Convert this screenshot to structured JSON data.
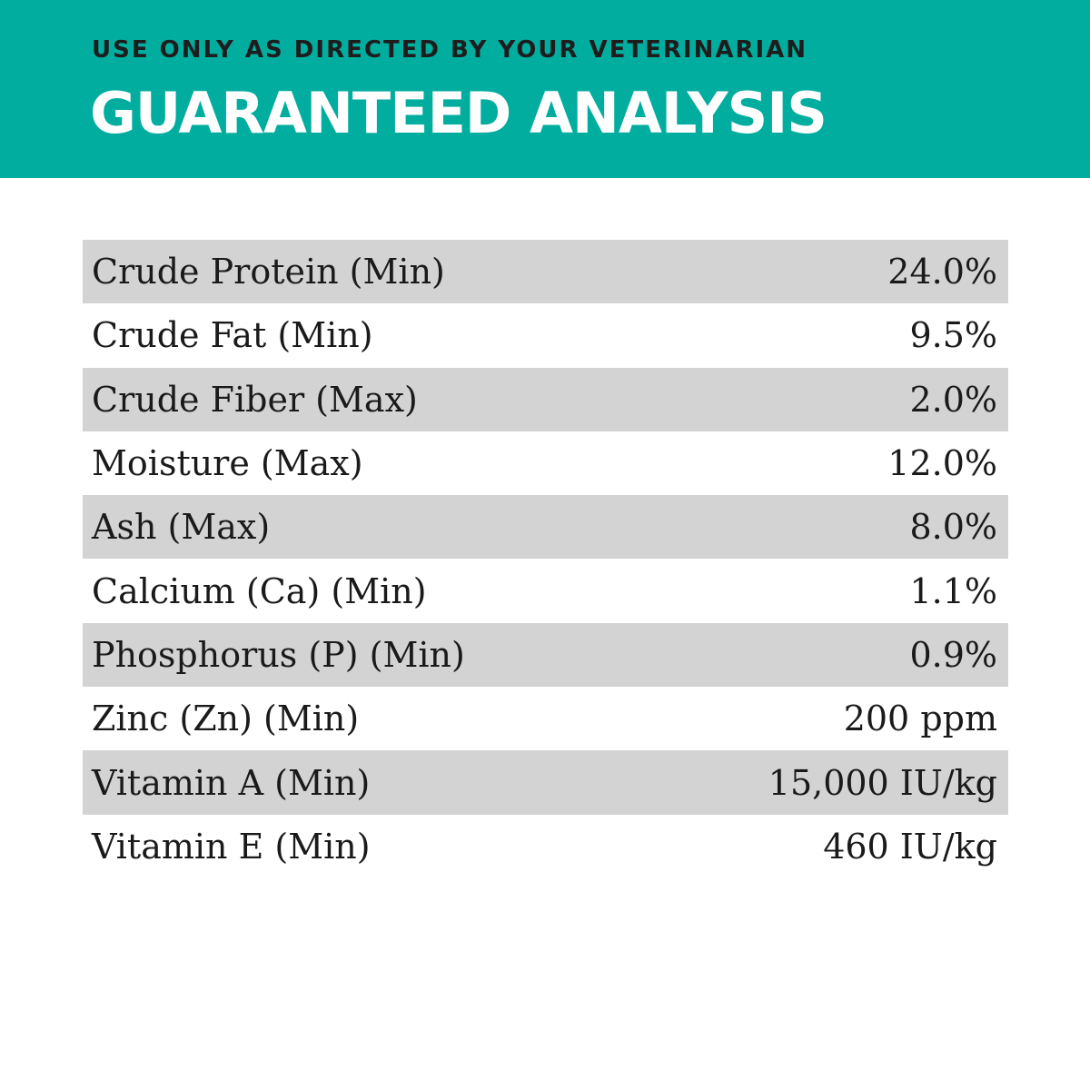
{
  "header": {
    "subtitle": "USE ONLY AS DIRECTED BY YOUR VETERINARIAN",
    "title": "GUARANTEED ANALYSIS",
    "background_color": "#00ad9f"
  },
  "table": {
    "stripe_color": "#d3d3d3",
    "rows": [
      {
        "label": "Crude Protein (Min)",
        "value": "24.0%"
      },
      {
        "label": "Crude Fat (Min)",
        "value": "9.5%"
      },
      {
        "label": "Crude Fiber (Max)",
        "value": "2.0%"
      },
      {
        "label": "Moisture (Max)",
        "value": "12.0%"
      },
      {
        "label": "Ash (Max)",
        "value": "8.0%"
      },
      {
        "label": "Calcium (Ca) (Min)",
        "value": "1.1%"
      },
      {
        "label": "Phosphorus (P) (Min)",
        "value": "0.9%"
      },
      {
        "label": "Zinc (Zn) (Min)",
        "value": "200 ppm"
      },
      {
        "label": "Vitamin A (Min)",
        "value": "15,000 IU/kg"
      },
      {
        "label": "Vitamin E (Min)",
        "value": "460 IU/kg"
      }
    ]
  }
}
